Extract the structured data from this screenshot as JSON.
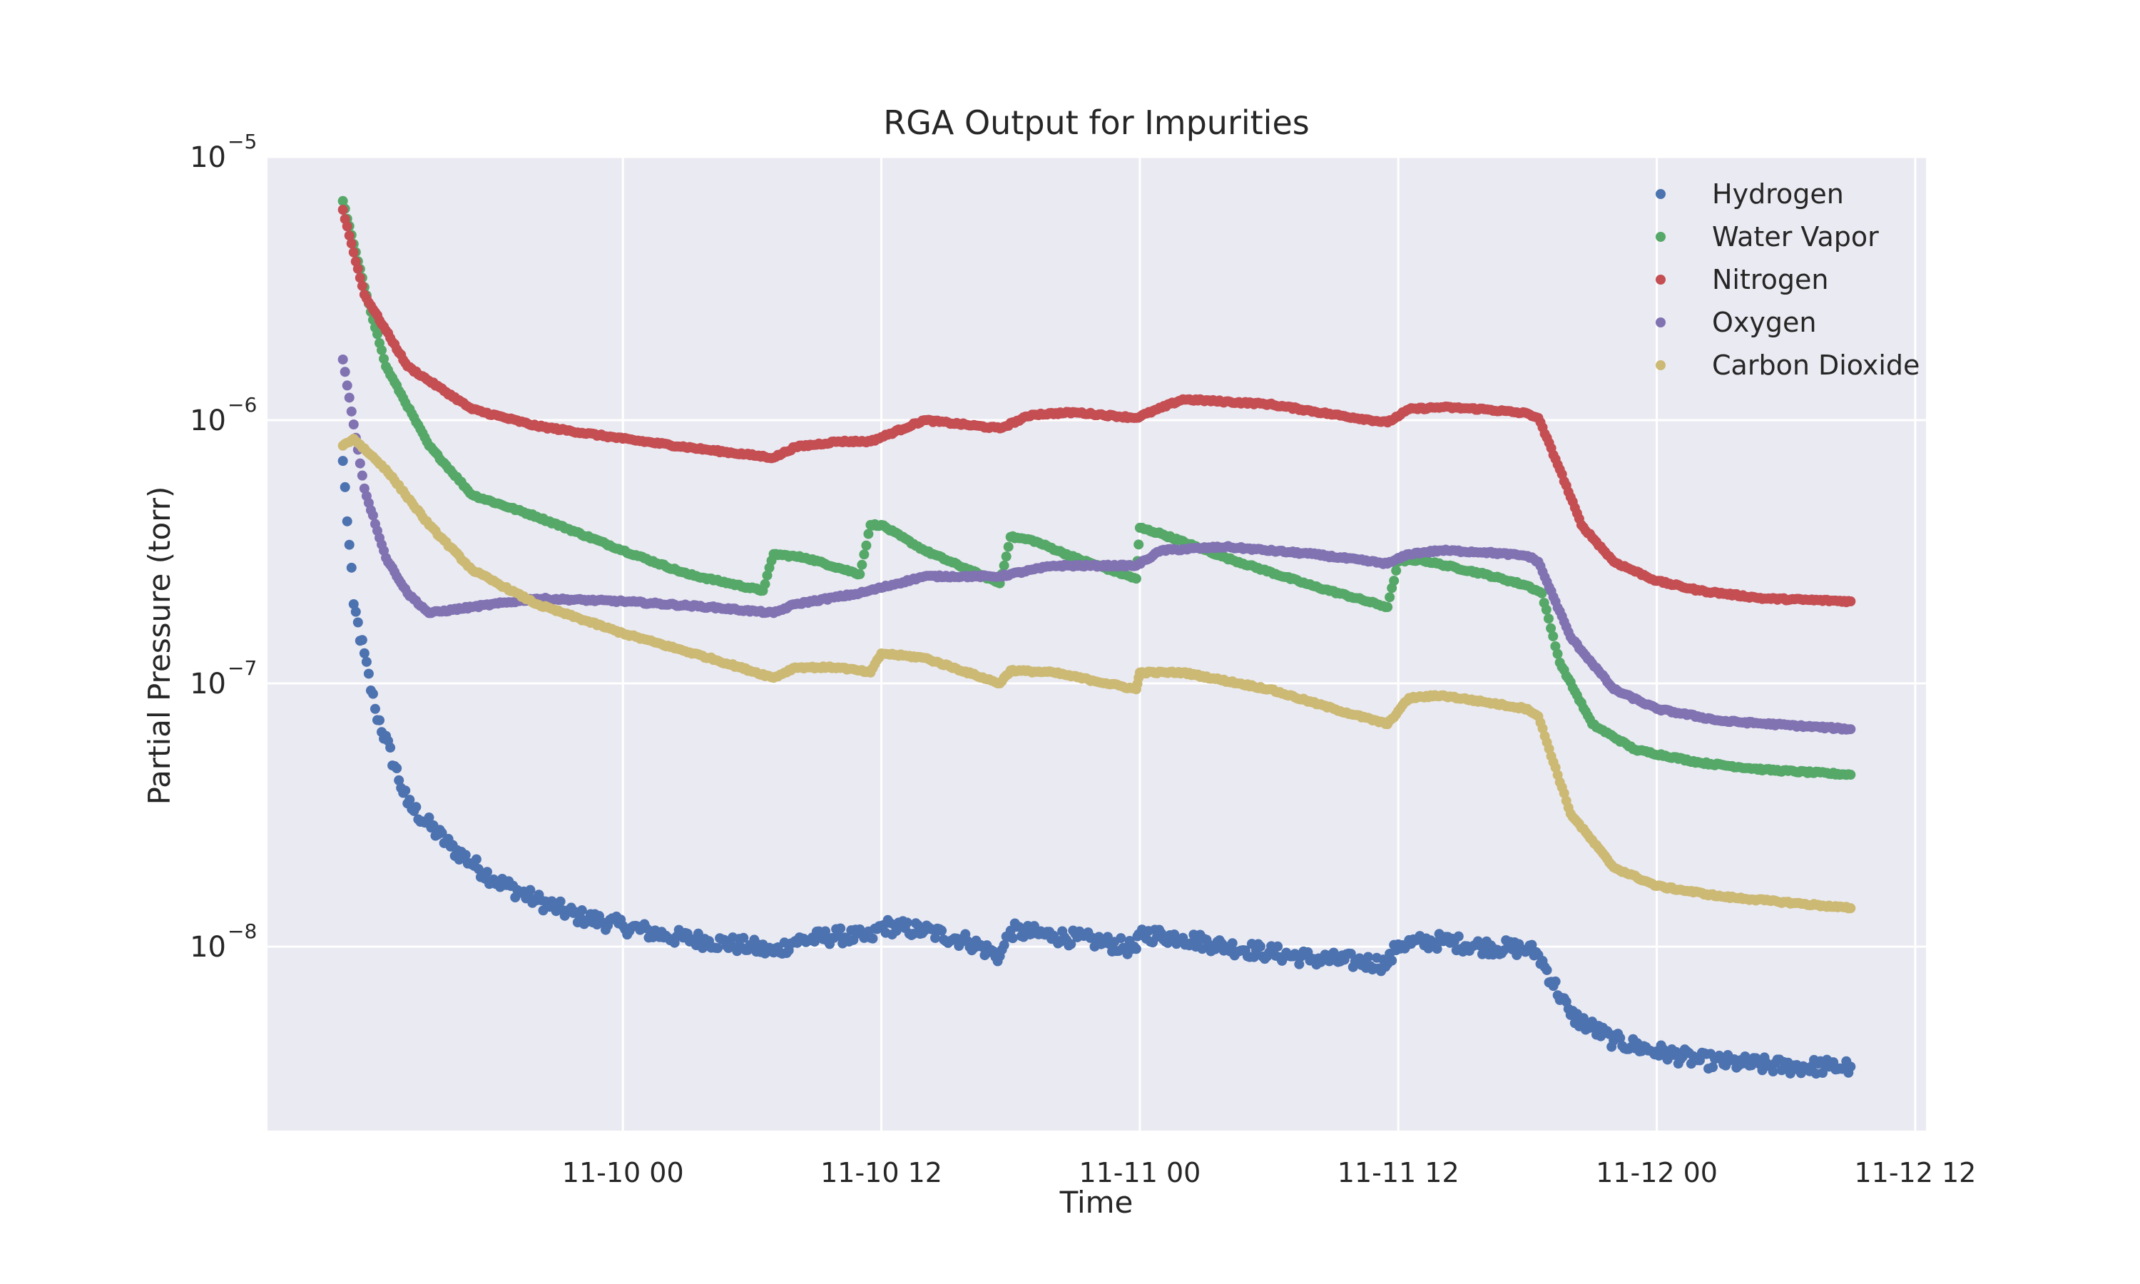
{
  "chart_data": {
    "type": "scatter",
    "title": "RGA Output for Impurities",
    "xlabel": "Time",
    "ylabel": "Partial Pressure (torr)",
    "yscale": "log",
    "ylim": [
      2e-09,
      1e-05
    ],
    "xlim": [
      "11-09 07:30",
      "11-12 12:30"
    ],
    "x_ticks": [
      "11-10 00",
      "11-10 12",
      "11-11 00",
      "11-11 12",
      "11-12 00",
      "11-12 12"
    ],
    "y_ticks": [
      {
        "base": "10",
        "exp": "−8"
      },
      {
        "base": "10",
        "exp": "−7"
      },
      {
        "base": "10",
        "exp": "−6"
      },
      {
        "base": "10",
        "exp": "−5"
      }
    ],
    "grid": true,
    "legend_position": "top-right",
    "series": [
      {
        "name": "Hydrogen",
        "color": "#4c72b0",
        "x": [
          "11-09 11:00",
          "11-09 11:30",
          "11-09 12:30",
          "11-09 14:00",
          "11-09 16:00",
          "11-09 18:00",
          "11-09 20:00",
          "11-09 22:00",
          "11-10 00:00",
          "11-10 02:00",
          "11-10 04:00",
          "11-10 06:00",
          "11-10 07:00",
          "11-10 08:00",
          "11-10 10:00",
          "11-10 11:30",
          "11-10 12:00",
          "11-10 14:00",
          "11-10 16:00",
          "11-10 17:30",
          "11-10 18:00",
          "11-10 20:00",
          "11-10 22:00",
          "11-10 23:50",
          "11-11 00:00",
          "11-11 02:00",
          "11-11 04:00",
          "11-11 06:00",
          "11-11 08:00",
          "11-11 10:00",
          "11-11 11:30",
          "11-11 12:00",
          "11-11 14:00",
          "11-11 16:00",
          "11-11 18:00",
          "11-11 18:30",
          "11-11 20:00",
          "11-11 22:00",
          "11-12 00:00",
          "11-12 02:00",
          "11-12 04:00",
          "11-12 06:00",
          "11-12 08:00",
          "11-12 09:00"
        ],
        "values": [
          7e-07,
          2e-07,
          8e-08,
          3.5e-08,
          2.4e-08,
          1.8e-08,
          1.5e-08,
          1.3e-08,
          1.2e-08,
          1.1e-08,
          1.05e-08,
          1e-08,
          9.5e-09,
          1.05e-08,
          1.1e-08,
          1.08e-08,
          1.2e-08,
          1.15e-08,
          1.05e-08,
          9.2e-09,
          1.15e-08,
          1.1e-08,
          1.05e-08,
          9.8e-09,
          1.12e-08,
          1.08e-08,
          1e-08,
          9.5e-09,
          9e-09,
          8.8e-09,
          8.6e-09,
          1.02e-08,
          1.05e-08,
          1e-08,
          9.8e-09,
          9.3e-09,
          5.5e-09,
          4.4e-09,
          4e-09,
          3.7e-09,
          3.6e-09,
          3.5e-09,
          3.5e-09,
          3.5e-09
        ]
      },
      {
        "name": "Water Vapor",
        "color": "#55a868",
        "x": [
          "11-09 11:00",
          "11-09 12:00",
          "11-09 13:00",
          "11-09 15:00",
          "11-09 17:00",
          "11-09 20:00",
          "11-10 00:00",
          "11-10 03:00",
          "11-10 06:30",
          "11-10 07:00",
          "11-10 08:30",
          "11-10 10:00",
          "11-10 11:00",
          "11-10 11:30",
          "11-10 12:00",
          "11-10 14:00",
          "11-10 17:30",
          "11-10 18:00",
          "11-10 19:00",
          "11-10 21:00",
          "11-10 23:50",
          "11-11 00:00",
          "11-11 01:00",
          "11-11 04:00",
          "11-11 08:00",
          "11-11 11:30",
          "11-11 12:00",
          "11-11 13:00",
          "11-11 16:00",
          "11-11 18:00",
          "11-11 18:40",
          "11-11 19:30",
          "11-11 21:00",
          "11-11 23:00",
          "11-12 02:00",
          "11-12 05:00",
          "11-12 09:00"
        ],
        "values": [
          6.8e-06,
          3.2e-06,
          1.6e-06,
          8e-07,
          5.2e-07,
          4.3e-07,
          3.2e-07,
          2.6e-07,
          2.25e-07,
          3.1e-07,
          3e-07,
          2.75e-07,
          2.6e-07,
          4e-07,
          4e-07,
          3.2e-07,
          2.4e-07,
          3.6e-07,
          3.5e-07,
          3e-07,
          2.5e-07,
          3.9e-07,
          3.7e-07,
          3e-07,
          2.35e-07,
          1.95e-07,
          2.9e-07,
          2.95e-07,
          2.6e-07,
          2.35e-07,
          2.2e-07,
          1.2e-07,
          7e-08,
          5.6e-08,
          5e-08,
          4.7e-08,
          4.5e-08
        ]
      },
      {
        "name": "Nitrogen",
        "color": "#c44e52",
        "x": [
          "11-09 11:00",
          "11-09 12:00",
          "11-09 14:00",
          "11-09 17:00",
          "11-09 20:00",
          "11-10 00:00",
          "11-10 04:00",
          "11-10 07:00",
          "11-10 08:00",
          "11-10 10:00",
          "11-10 11:30",
          "11-10 14:00",
          "11-10 17:30",
          "11-10 19:00",
          "11-10 21:00",
          "11-10 23:50",
          "11-11 02:00",
          "11-11 06:00",
          "11-11 09:00",
          "11-11 11:30",
          "11-11 12:30",
          "11-11 14:00",
          "11-11 16:00",
          "11-11 18:00",
          "11-11 18:30",
          "11-11 19:30",
          "11-11 20:30",
          "11-11 22:00",
          "11-12 00:00",
          "11-12 02:00",
          "11-12 05:00",
          "11-12 09:00"
        ],
        "values": [
          6.3e-06,
          3e-06,
          1.6e-06,
          1.1e-06,
          9.5e-07,
          8.5e-07,
          7.7e-07,
          7.2e-07,
          7.9e-07,
          8.3e-07,
          8.3e-07,
          1e-06,
          9.3e-07,
          1.05e-06,
          1.07e-06,
          1.02e-06,
          1.2e-06,
          1.15e-06,
          1.05e-06,
          9.8e-07,
          1.1e-06,
          1.12e-06,
          1.1e-06,
          1.06e-06,
          1.02e-06,
          6.5e-07,
          4e-07,
          2.9e-07,
          2.45e-07,
          2.25e-07,
          2.1e-07,
          2.05e-07
        ]
      },
      {
        "name": "Oxygen",
        "color": "#8172b2",
        "x": [
          "11-09 11:00",
          "11-09 12:00",
          "11-09 13:00",
          "11-09 14:00",
          "11-09 15:00",
          "11-09 17:00",
          "11-09 20:00",
          "11-10 00:00",
          "11-10 04:00",
          "11-10 07:00",
          "11-10 08:00",
          "11-10 11:00",
          "11-10 14:00",
          "11-10 17:30",
          "11-10 20:00",
          "11-10 23:50",
          "11-11 01:00",
          "11-11 04:00",
          "11-11 08:00",
          "11-11 11:30",
          "11-11 12:30",
          "11-11 14:00",
          "11-11 16:00",
          "11-11 18:00",
          "11-11 18:30",
          "11-11 20:00",
          "11-11 22:00",
          "11-12 00:00",
          "11-12 03:00",
          "11-12 09:00"
        ],
        "values": [
          1.7e-06,
          5.5e-07,
          3e-07,
          2.2e-07,
          1.85e-07,
          1.95e-07,
          2.1e-07,
          2.05e-07,
          1.95e-07,
          1.85e-07,
          2e-07,
          2.2e-07,
          2.55e-07,
          2.55e-07,
          2.8e-07,
          2.8e-07,
          3.2e-07,
          3.3e-07,
          3.1e-07,
          2.85e-07,
          3.1e-07,
          3.2e-07,
          3.15e-07,
          3.05e-07,
          2.9e-07,
          1.5e-07,
          9.5e-08,
          8e-08,
          7.2e-08,
          6.7e-08
        ]
      },
      {
        "name": "Carbon Dioxide",
        "color": "#ccb974",
        "x": [
          "11-09 11:00",
          "11-09 11:30",
          "11-09 13:00",
          "11-09 15:00",
          "11-09 17:00",
          "11-09 20:00",
          "11-10 00:00",
          "11-10 04:00",
          "11-10 07:00",
          "11-10 08:00",
          "11-10 10:00",
          "11-10 11:30",
          "11-10 12:00",
          "11-10 14:00",
          "11-10 17:30",
          "11-10 18:00",
          "11-10 20:00",
          "11-10 23:50",
          "11-11 00:00",
          "11-11 02:00",
          "11-11 06:00",
          "11-11 09:00",
          "11-11 11:30",
          "11-11 12:30",
          "11-11 14:00",
          "11-11 16:00",
          "11-11 18:00",
          "11-11 18:30",
          "11-11 20:00",
          "11-11 22:00",
          "11-12 00:00",
          "11-12 03:00",
          "11-12 09:00"
        ],
        "values": [
          8e-07,
          8.5e-07,
          6.5e-07,
          4e-07,
          2.7e-07,
          2e-07,
          1.55e-07,
          1.25e-07,
          1.05e-07,
          1.15e-07,
          1.15e-07,
          1.1e-07,
          1.3e-07,
          1.25e-07,
          1e-07,
          1.12e-07,
          1.1e-07,
          9.5e-08,
          1.1e-07,
          1.1e-07,
          9.5e-08,
          8e-08,
          7e-08,
          8.8e-08,
          9e-08,
          8.5e-08,
          8e-08,
          7.5e-08,
          3.2e-08,
          2e-08,
          1.7e-08,
          1.55e-08,
          1.4e-08
        ]
      }
    ]
  }
}
